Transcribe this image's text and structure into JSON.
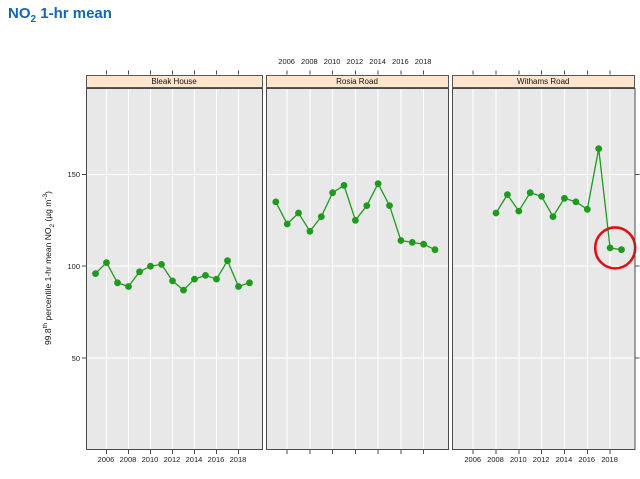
{
  "title": {
    "part1": "NO",
    "part2": "2",
    "part3": " 1-hr mean",
    "text": "NO2 1-hr mean"
  },
  "ylabel": {
    "part1": "99.8",
    "part2": "th",
    "part3": " percentile 1-hr mean NO",
    "part4": "2",
    "part5": " (µg m",
    "part6": "-3",
    "part7": ")",
    "text": "99.8th percentile 1-hr mean NO2 (µg m-3)"
  },
  "colors": {
    "title": "#1565B4",
    "series": "#1E9B1E",
    "strip_bg": "#FFE5CC",
    "panel_bg": "#E8E8E8",
    "grid": "#FFFFFF",
    "border": "#4A4A4A",
    "annotation": "#DE1212",
    "tick_text": "#1A1A1A"
  },
  "chart_data": {
    "type": "line",
    "title": "NO2 1-hr mean",
    "ylabel": "99.8th percentile 1-hr mean NO2 (µg m-3)",
    "xlabel": "",
    "x_ticks": [
      2006,
      2008,
      2010,
      2012,
      2014,
      2016,
      2018
    ],
    "y_ticks": [
      50,
      100,
      150
    ],
    "xlim": [
      2004.14,
      2020.23
    ],
    "ylim": [
      0,
      197
    ],
    "grid": true,
    "legend_position": "none",
    "layout": "3-panel lattice strip plot; x tick labels below panels 1 and 3, above panel 2; y labels on left",
    "panels": [
      {
        "name": "Bleak House",
        "years": [
          2005,
          2006,
          2007,
          2008,
          2009,
          2010,
          2011,
          2012,
          2013,
          2014,
          2015,
          2016,
          2017,
          2018,
          2019
        ],
        "values": [
          96,
          102,
          91,
          89,
          97,
          100,
          101,
          92,
          87,
          93,
          95,
          93,
          103,
          89,
          91
        ]
      },
      {
        "name": "Rosia Road",
        "years": [
          2005,
          2006,
          2007,
          2008,
          2009,
          2010,
          2011,
          2012,
          2013,
          2014,
          2015,
          2016,
          2017,
          2018,
          2019
        ],
        "values": [
          135,
          123,
          129,
          119,
          127,
          140,
          144,
          125,
          133,
          145,
          133,
          114,
          113,
          112,
          109
        ]
      },
      {
        "name": "Withams Road",
        "years": [
          2008,
          2009,
          2010,
          2011,
          2012,
          2013,
          2014,
          2015,
          2016,
          2017,
          2018,
          2019
        ],
        "values": [
          129,
          139,
          130,
          140,
          138,
          127,
          137,
          135,
          131,
          164,
          110,
          109
        ]
      }
    ],
    "annotation": {
      "shape": "ellipse",
      "panel": "Withams Road",
      "circled_years": [
        2018,
        2019
      ],
      "center_year": 2018.45,
      "center_value": 110,
      "radius_x_px": 20,
      "radius_y_px": 20.5,
      "color": "#DE1212"
    }
  }
}
